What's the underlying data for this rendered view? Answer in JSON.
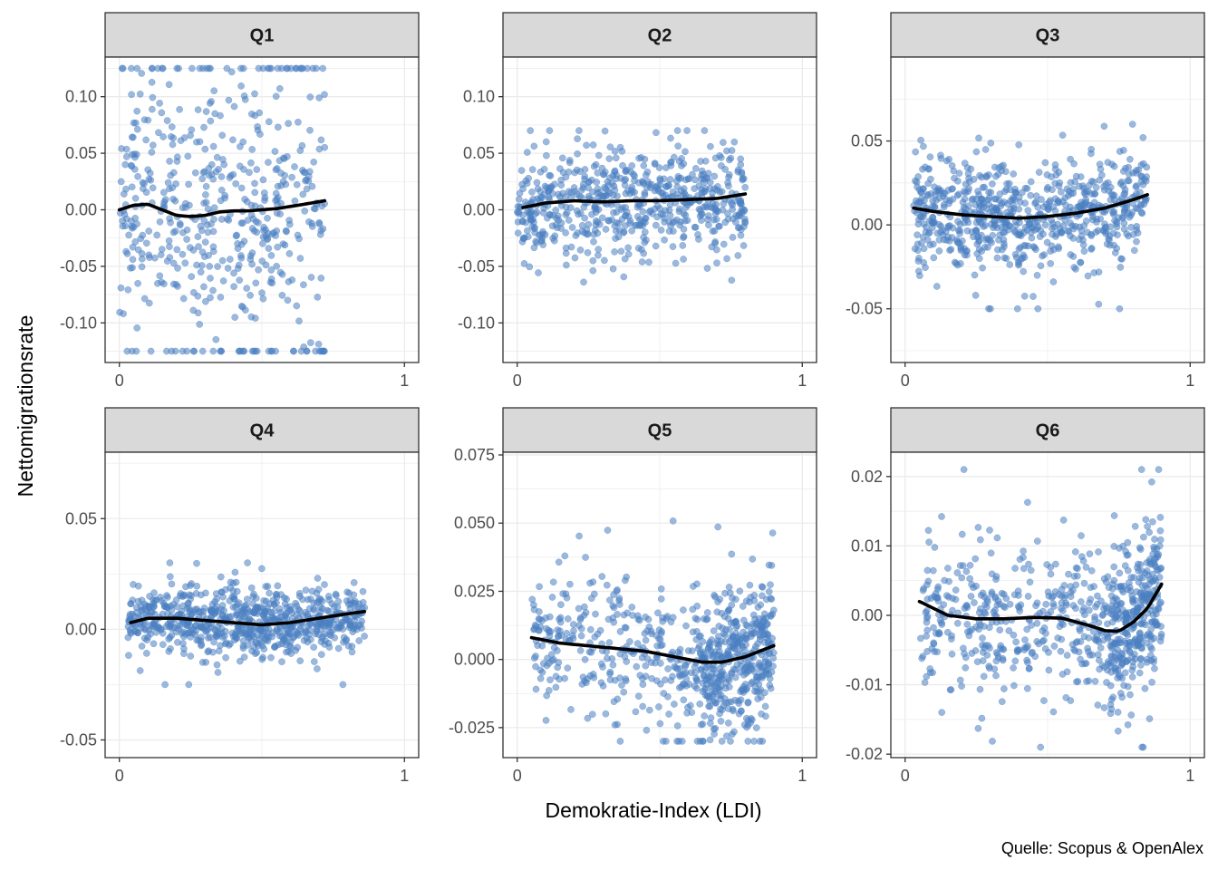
{
  "chart_data": {
    "type": "scatter",
    "xlabel": "Demokratie-Index (LDI)",
    "ylabel": "Nettomigrationsrate",
    "caption": "Quelle: Scopus & OpenAlex",
    "colors": {
      "points": "#4a7fc1",
      "smooth": "#000000",
      "strip": "#d9d9d9",
      "grid": "#ebebeb",
      "border": "#333333"
    },
    "grid": true,
    "panels": [
      {
        "title": "Q1",
        "xlim": [
          -0.05,
          1.05
        ],
        "ylim": [
          -0.135,
          0.135
        ],
        "x_ticks": [
          0,
          1
        ],
        "x_tick_labels": [
          "0",
          "1"
        ],
        "y_ticks": [
          -0.1,
          -0.05,
          0,
          0.05,
          0.1
        ],
        "y_tick_labels": [
          "-0.10",
          "-0.05",
          "0.00",
          "0.05",
          "0.10"
        ],
        "point_x_range": [
          0.0,
          0.72
        ],
        "point_y_range": [
          -0.125,
          0.125
        ],
        "point_count": 520,
        "smooth": {
          "x": [
            0.0,
            0.05,
            0.1,
            0.15,
            0.2,
            0.25,
            0.3,
            0.35,
            0.4,
            0.45,
            0.5,
            0.55,
            0.6,
            0.65,
            0.72
          ],
          "y": [
            0.0,
            0.004,
            0.005,
            0.0,
            -0.005,
            -0.006,
            -0.005,
            -0.002,
            -0.001,
            -0.001,
            0.0,
            0.001,
            0.003,
            0.005,
            0.008
          ]
        }
      },
      {
        "title": "Q2",
        "xlim": [
          -0.05,
          1.05
        ],
        "ylim": [
          -0.135,
          0.135
        ],
        "x_ticks": [
          0,
          1
        ],
        "x_tick_labels": [
          "0",
          "1"
        ],
        "y_ticks": [
          -0.1,
          -0.05,
          0,
          0.05,
          0.1
        ],
        "y_tick_labels": [
          "-0.10",
          "-0.05",
          "0.00",
          "0.05",
          "0.10"
        ],
        "point_x_range": [
          0.0,
          0.8
        ],
        "point_y_range": [
          -0.1,
          0.07
        ],
        "point_count": 620,
        "smooth": {
          "x": [
            0.02,
            0.1,
            0.2,
            0.3,
            0.4,
            0.5,
            0.6,
            0.7,
            0.8
          ],
          "y": [
            0.002,
            0.006,
            0.008,
            0.007,
            0.008,
            0.008,
            0.009,
            0.01,
            0.014
          ]
        }
      },
      {
        "title": "Q3",
        "xlim": [
          -0.05,
          1.05
        ],
        "ylim": [
          -0.082,
          0.1
        ],
        "x_ticks": [
          0,
          1
        ],
        "x_tick_labels": [
          "0",
          "1"
        ],
        "y_ticks": [
          -0.05,
          0,
          0.05
        ],
        "y_tick_labels": [
          "-0.05",
          "0.00",
          "0.05"
        ],
        "point_x_range": [
          0.03,
          0.85
        ],
        "point_y_range": [
          -0.05,
          0.06
        ],
        "point_count": 720,
        "smooth": {
          "x": [
            0.03,
            0.1,
            0.2,
            0.3,
            0.4,
            0.5,
            0.6,
            0.7,
            0.8,
            0.85
          ],
          "y": [
            0.01,
            0.008,
            0.006,
            0.005,
            0.004,
            0.005,
            0.007,
            0.01,
            0.015,
            0.018
          ]
        }
      },
      {
        "title": "Q4",
        "xlim": [
          -0.05,
          1.05
        ],
        "ylim": [
          -0.058,
          0.08
        ],
        "x_ticks": [
          0,
          1
        ],
        "x_tick_labels": [
          "0",
          "1"
        ],
        "y_ticks": [
          -0.05,
          0,
          0.05
        ],
        "y_tick_labels": [
          "-0.05",
          "0.00",
          "0.05"
        ],
        "point_x_range": [
          0.03,
          0.86
        ],
        "point_y_range": [
          -0.025,
          0.03
        ],
        "point_count": 720,
        "smooth": {
          "x": [
            0.04,
            0.1,
            0.2,
            0.3,
            0.4,
            0.5,
            0.6,
            0.7,
            0.8,
            0.86
          ],
          "y": [
            0.003,
            0.005,
            0.005,
            0.004,
            0.003,
            0.002,
            0.003,
            0.005,
            0.007,
            0.008
          ]
        }
      },
      {
        "title": "Q5",
        "xlim": [
          -0.05,
          1.05
        ],
        "ylim": [
          -0.036,
          0.076
        ],
        "x_ticks": [
          0,
          1
        ],
        "x_tick_labels": [
          "0",
          "1"
        ],
        "y_ticks": [
          -0.025,
          0,
          0.025,
          0.05,
          0.075
        ],
        "y_tick_labels": [
          "-0.025",
          "0.000",
          "0.025",
          "0.050",
          "0.075"
        ],
        "point_x_range": [
          0.05,
          0.9
        ],
        "point_y_range": [
          -0.03,
          0.06
        ],
        "point_count": 720,
        "smooth": {
          "x": [
            0.05,
            0.15,
            0.25,
            0.35,
            0.45,
            0.55,
            0.65,
            0.72,
            0.8,
            0.9
          ],
          "y": [
            0.008,
            0.006,
            0.005,
            0.004,
            0.003,
            0.001,
            -0.001,
            -0.001,
            0.001,
            0.005
          ]
        }
      },
      {
        "title": "Q6",
        "xlim": [
          -0.05,
          1.05
        ],
        "ylim": [
          -0.0205,
          0.0235
        ],
        "x_ticks": [
          0,
          1
        ],
        "x_tick_labels": [
          "0",
          "1"
        ],
        "y_ticks": [
          -0.02,
          -0.01,
          0,
          0.01,
          0.02
        ],
        "y_tick_labels": [
          "-0.02",
          "-0.01",
          "0.00",
          "0.01",
          "0.02"
        ],
        "point_x_range": [
          0.05,
          0.9
        ],
        "point_y_range": [
          -0.019,
          0.021
        ],
        "point_count": 720,
        "smooth": {
          "x": [
            0.05,
            0.15,
            0.25,
            0.35,
            0.45,
            0.55,
            0.65,
            0.7,
            0.75,
            0.8,
            0.85,
            0.9
          ],
          "y": [
            0.002,
            0.0,
            -0.0005,
            -0.0005,
            -0.0003,
            -0.0004,
            -0.0015,
            -0.0022,
            -0.0023,
            -0.001,
            0.001,
            0.0045
          ]
        }
      }
    ]
  }
}
